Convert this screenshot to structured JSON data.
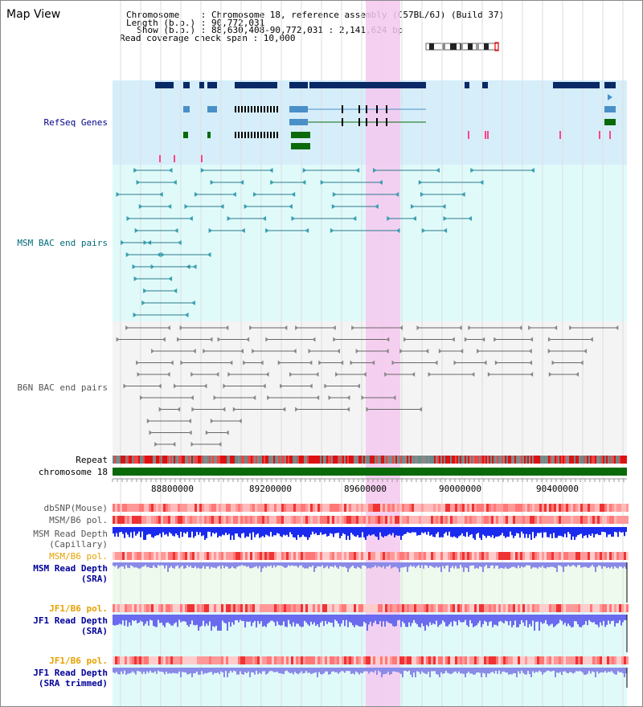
{
  "title": "Map View",
  "info": {
    "chromosome": "Chromosome    : Chromosome 18, reference assembly (C57BL/6J) (Build 37)",
    "length": "Length (b.p.) : 90,772,031",
    "show": "  Show (b.p.) : 88,630,408-90,772,031 : 2,141,624 bp",
    "coverage": "Read coverage check span : 10,000"
  },
  "tracks": {
    "refseq": "RefSeq Genes",
    "msm_bac": "MSM BAC end pairs",
    "b6n_bac": "B6N BAC end pairs",
    "repeat": "Repeat",
    "chrom": "chromosome 18",
    "dbsnp": "dbSNP(Mouse)",
    "msm_b6_pol_1": "MSM/B6 pol.",
    "msm_read_depth_cap_1": "MSM Read Depth",
    "msm_read_depth_cap_2": "(Capillary)",
    "msm_b6_pol_2": "MSM/B6 pol.",
    "msm_read_depth_sra_1": "MSM Read Depth",
    "msm_read_depth_sra_2": "(SRA)",
    "jf1_b6_pol_1": "JF1/B6 pol.",
    "jf1_read_depth_1": "JF1 Read Depth",
    "jf1_read_depth_2": "(SRA)",
    "jf1_b6_pol_2": "JF1/B6 pol.",
    "jf1_read_depth_trim_1": "JF1 Read Depth",
    "jf1_read_depth_trim_2": "(SRA trimmed)"
  },
  "ruler": {
    "ticks": [
      "88800000",
      "89200000",
      "89600000",
      "90000000",
      "90400000"
    ]
  },
  "colors": {
    "refseq_bg": "#d6eefa",
    "msm_bg": "#e0fafa",
    "b6n_bg": "#f4f4f4",
    "highlight": "#f5c8ee",
    "gene_dark": "#0a2a66",
    "gene_mid": "#4a90c8",
    "gene_green": "#0a6a0a",
    "msm_label": "#006a7a",
    "b6n_label": "#555555",
    "refseq_label": "#00008b",
    "orange_label": "#e6a000",
    "blue_label": "#000099"
  }
}
